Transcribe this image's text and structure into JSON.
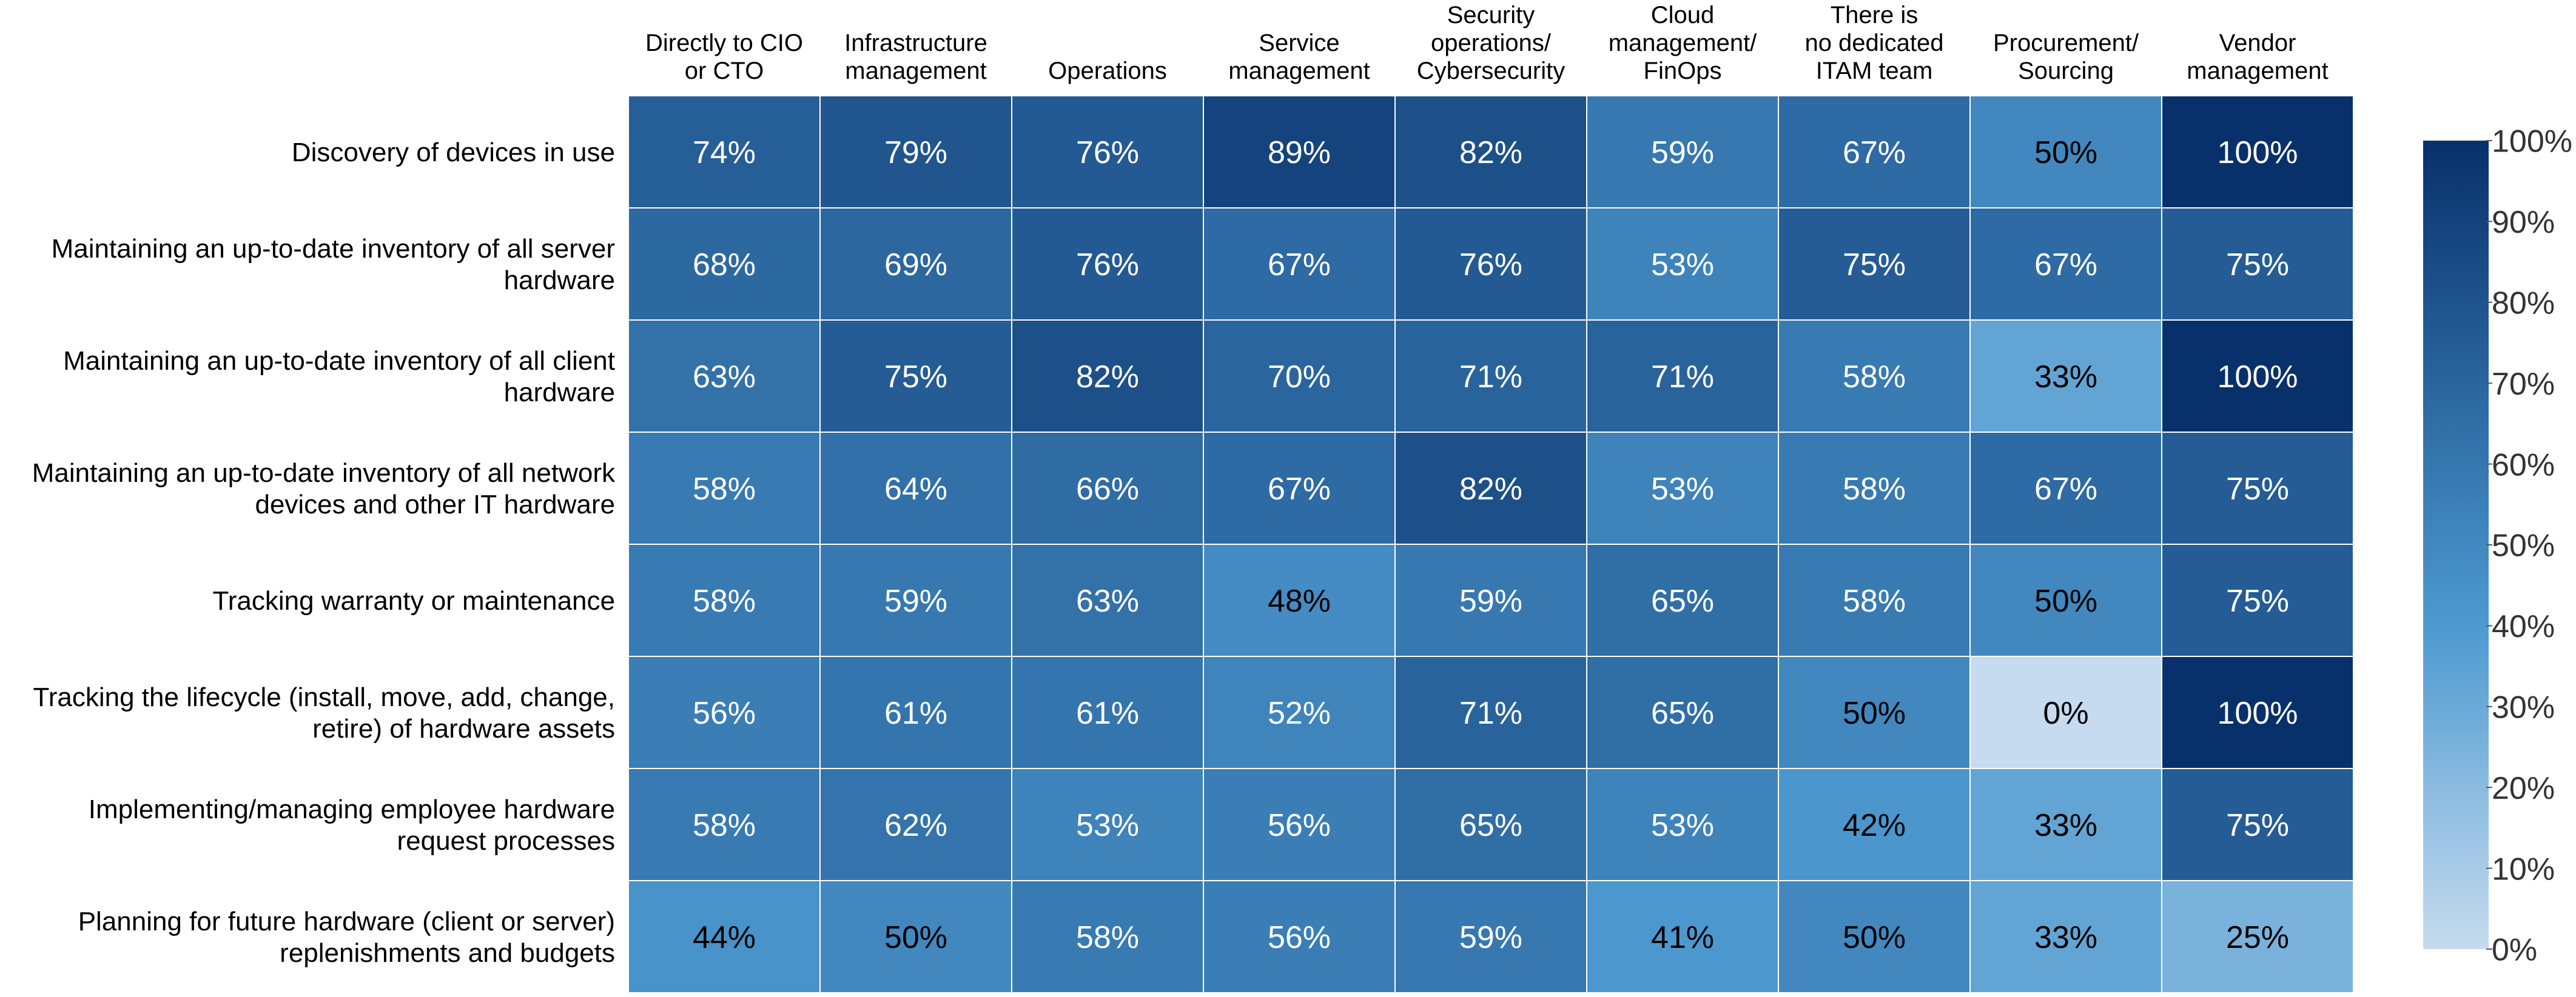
{
  "chart_data": {
    "type": "heatmap",
    "title": "",
    "columns": [
      [
        "Directly to CIO",
        "or CTO"
      ],
      [
        "Infrastructure",
        "management"
      ],
      [
        "Operations"
      ],
      [
        "Service",
        "management"
      ],
      [
        "Security",
        "operations/",
        "Cybersecurity"
      ],
      [
        "Cloud",
        "management/",
        "FinOps"
      ],
      [
        "There is",
        "no dedicated",
        "ITAM team"
      ],
      [
        "Procurement/",
        "Sourcing"
      ],
      [
        "Vendor",
        "management"
      ]
    ],
    "rows": [
      [
        "Discovery of devices in use"
      ],
      [
        "Maintaining an up-to-date inventory of all server",
        "hardware"
      ],
      [
        "Maintaining an up-to-date inventory of all client",
        "hardware"
      ],
      [
        "Maintaining an up-to-date inventory of all network",
        "devices and other IT hardware"
      ],
      [
        "Tracking warranty or maintenance"
      ],
      [
        "Tracking the lifecycle (install, move, add, change,",
        "retire) of hardware assets"
      ],
      [
        "Implementing/managing employee hardware",
        "request processes"
      ],
      [
        "Planning for future hardware (client or server)",
        "replenishments and budgets"
      ]
    ],
    "values": [
      [
        74,
        79,
        76,
        89,
        82,
        59,
        67,
        50,
        100
      ],
      [
        68,
        69,
        76,
        67,
        76,
        53,
        75,
        67,
        75
      ],
      [
        63,
        75,
        82,
        70,
        71,
        71,
        58,
        33,
        100
      ],
      [
        58,
        64,
        66,
        67,
        82,
        53,
        58,
        67,
        75
      ],
      [
        58,
        59,
        63,
        48,
        59,
        65,
        58,
        50,
        75
      ],
      [
        56,
        61,
        61,
        52,
        71,
        65,
        50,
        0,
        100
      ],
      [
        58,
        62,
        53,
        56,
        65,
        53,
        42,
        33,
        75
      ],
      [
        44,
        50,
        58,
        56,
        59,
        41,
        50,
        33,
        25
      ]
    ],
    "value_suffix": "%",
    "colorbar": {
      "min": 0,
      "max": 100,
      "ticks": [
        "0%",
        "10%",
        "20%",
        "30%",
        "40%",
        "50%",
        "60%",
        "70%",
        "80%",
        "90%",
        "100%"
      ]
    },
    "colors": {
      "low": "#c6dbef",
      "mid": "#4d9ad0",
      "high": "#08306b",
      "grid_line": "#ffffff",
      "text_dark": "#000000",
      "text_light": "#ffffff"
    }
  }
}
